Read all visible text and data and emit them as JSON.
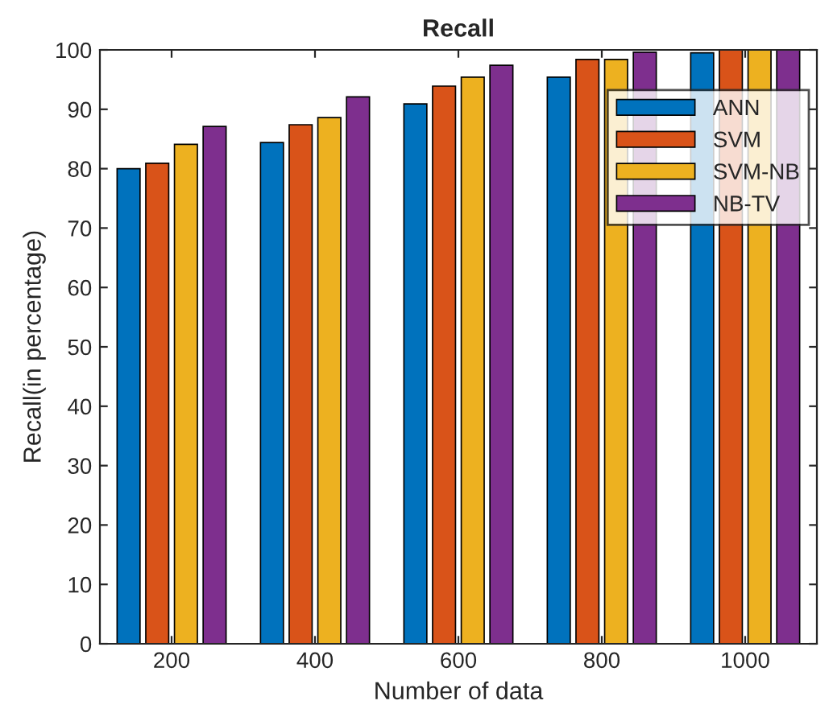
{
  "chart_data": {
    "type": "bar",
    "title": "Recall",
    "xlabel": "Number of data",
    "ylabel": "Recall(in percentage)",
    "categories": [
      "200",
      "400",
      "600",
      "800",
      "1000"
    ],
    "series": [
      {
        "name": "ANN",
        "color": "#0072bd",
        "values": [
          80.0,
          84.4,
          90.9,
          95.4,
          99.5
        ]
      },
      {
        "name": "SVM",
        "color": "#d95319",
        "values": [
          80.9,
          87.4,
          93.9,
          98.4,
          100
        ]
      },
      {
        "name": "SVM-NB",
        "color": "#edb120",
        "values": [
          84.1,
          88.6,
          95.4,
          98.4,
          100
        ]
      },
      {
        "name": "NB-TV",
        "color": "#7e2f8e",
        "values": [
          87.1,
          92.1,
          97.4,
          99.6,
          100
        ]
      }
    ],
    "ylim": [
      0,
      100
    ],
    "yticks": [
      0,
      10,
      20,
      30,
      40,
      50,
      60,
      70,
      80,
      90,
      100
    ],
    "grid": false,
    "legend": "top right"
  }
}
